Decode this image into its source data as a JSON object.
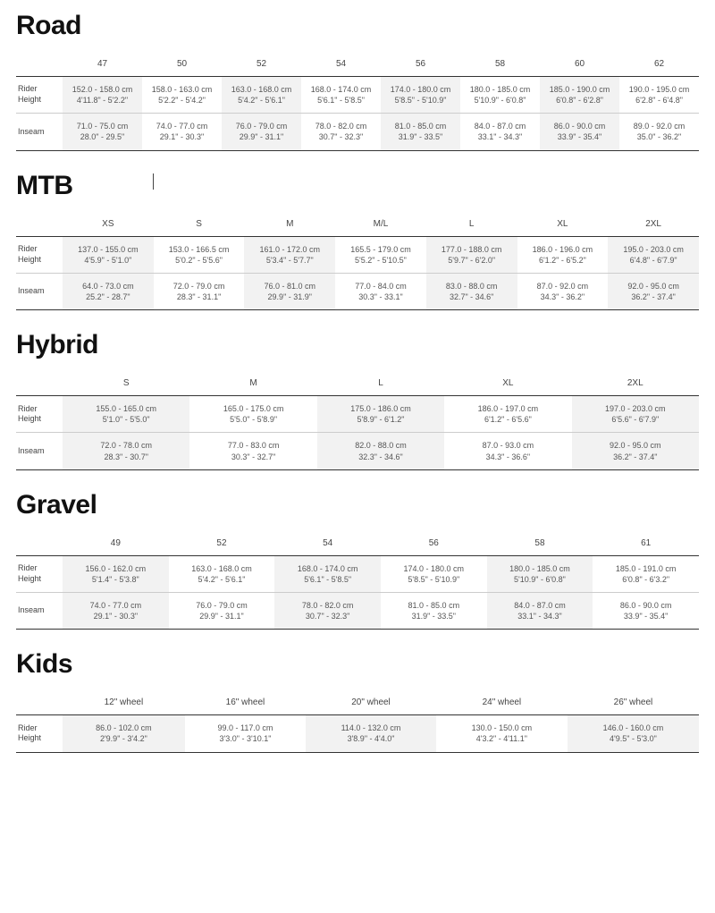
{
  "sections": [
    {
      "title": "Road",
      "cursor": false,
      "sizes": [
        "47",
        "50",
        "52",
        "54",
        "56",
        "58",
        "60",
        "62"
      ],
      "rows": [
        {
          "label": "Rider\nHeight",
          "cells": [
            [
              "152.0 - 158.0 cm",
              "4'11.8\" - 5'2.2\""
            ],
            [
              "158.0 - 163.0 cm",
              "5'2.2\" - 5'4.2\""
            ],
            [
              "163.0 - 168.0 cm",
              "5'4.2\" - 5'6.1\""
            ],
            [
              "168.0 - 174.0 cm",
              "5'6.1\" - 5'8.5\""
            ],
            [
              "174.0 - 180.0 cm",
              "5'8.5\" - 5'10.9\""
            ],
            [
              "180.0 - 185.0 cm",
              "5'10.9\" - 6'0.8\""
            ],
            [
              "185.0 - 190.0 cm",
              "6'0.8\" - 6'2.8\""
            ],
            [
              "190.0 - 195.0 cm",
              "6'2.8\" - 6'4.8\""
            ]
          ]
        },
        {
          "label": "Inseam",
          "cells": [
            [
              "71.0 - 75.0 cm",
              "28.0\" - 29.5\""
            ],
            [
              "74.0 - 77.0 cm",
              "29.1\" - 30.3\""
            ],
            [
              "76.0 - 79.0 cm",
              "29.9\" - 31.1\""
            ],
            [
              "78.0 - 82.0 cm",
              "30.7\" - 32.3\""
            ],
            [
              "81.0 - 85.0 cm",
              "31.9\" - 33.5\""
            ],
            [
              "84.0 - 87.0 cm",
              "33.1\" - 34.3\""
            ],
            [
              "86.0 - 90.0 cm",
              "33.9\" - 35.4\""
            ],
            [
              "89.0 - 92.0 cm",
              "35.0\" - 36.2\""
            ]
          ]
        }
      ]
    },
    {
      "title": "MTB",
      "cursor": true,
      "sizes": [
        "XS",
        "S",
        "M",
        "M/L",
        "L",
        "XL",
        "2XL"
      ],
      "rows": [
        {
          "label": "Rider\nHeight",
          "cells": [
            [
              "137.0 - 155.0 cm",
              "4'5.9\" - 5'1.0\""
            ],
            [
              "153.0 - 166.5 cm",
              "5'0.2\" - 5'5.6\""
            ],
            [
              "161.0 - 172.0 cm",
              "5'3.4\" - 5'7.7\""
            ],
            [
              "165.5 - 179.0 cm",
              "5'5.2\" - 5'10.5\""
            ],
            [
              "177.0 - 188.0 cm",
              "5'9.7\" - 6'2.0\""
            ],
            [
              "186.0 - 196.0 cm",
              "6'1.2\" - 6'5.2\""
            ],
            [
              "195.0 - 203.0 cm",
              "6'4.8\" - 6'7.9\""
            ]
          ]
        },
        {
          "label": "Inseam",
          "cells": [
            [
              "64.0 - 73.0 cm",
              "25.2\" - 28.7\""
            ],
            [
              "72.0 - 79.0 cm",
              "28.3\" - 31.1\""
            ],
            [
              "76.0 - 81.0 cm",
              "29.9\" - 31.9\""
            ],
            [
              "77.0 - 84.0 cm",
              "30.3\" - 33.1\""
            ],
            [
              "83.0 - 88.0 cm",
              "32.7\" - 34.6\""
            ],
            [
              "87.0 - 92.0 cm",
              "34.3\" - 36.2\""
            ],
            [
              "92.0 - 95.0 cm",
              "36.2\" - 37.4\""
            ]
          ]
        }
      ]
    },
    {
      "title": "Hybrid",
      "cursor": false,
      "sizes": [
        "S",
        "M",
        "L",
        "XL",
        "2XL"
      ],
      "rows": [
        {
          "label": "Rider\nHeight",
          "cells": [
            [
              "155.0 - 165.0 cm",
              "5'1.0\" - 5'5.0\""
            ],
            [
              "165.0 - 175.0 cm",
              "5'5.0\" - 5'8.9\""
            ],
            [
              "175.0 - 186.0 cm",
              "5'8.9\" - 6'1.2\""
            ],
            [
              "186.0 - 197.0 cm",
              "6'1.2\" - 6'5.6\""
            ],
            [
              "197.0 - 203.0 cm",
              "6'5.6\" - 6'7.9\""
            ]
          ]
        },
        {
          "label": "Inseam",
          "cells": [
            [
              "72.0 - 78.0 cm",
              "28.3\" - 30.7\""
            ],
            [
              "77.0 - 83.0 cm",
              "30.3\" - 32.7\""
            ],
            [
              "82.0 - 88.0 cm",
              "32.3\" - 34.6\""
            ],
            [
              "87.0 - 93.0 cm",
              "34.3\" - 36.6\""
            ],
            [
              "92.0 - 95.0 cm",
              "36.2\" - 37.4\""
            ]
          ]
        }
      ]
    },
    {
      "title": "Gravel",
      "cursor": false,
      "sizes": [
        "49",
        "52",
        "54",
        "56",
        "58",
        "61"
      ],
      "rows": [
        {
          "label": "Rider\nHeight",
          "cells": [
            [
              "156.0 - 162.0 cm",
              "5'1.4\" - 5'3.8\""
            ],
            [
              "163.0 - 168.0 cm",
              "5'4.2\" - 5'6.1\""
            ],
            [
              "168.0 - 174.0 cm",
              "5'6.1\" - 5'8.5\""
            ],
            [
              "174.0 - 180.0 cm",
              "5'8.5\" - 5'10.9\""
            ],
            [
              "180.0 - 185.0 cm",
              "5'10.9\" - 6'0.8\""
            ],
            [
              "185.0 - 191.0 cm",
              "6'0.8\" - 6'3.2\""
            ]
          ]
        },
        {
          "label": "Inseam",
          "cells": [
            [
              "74.0 - 77.0 cm",
              "29.1\" - 30.3\""
            ],
            [
              "76.0 - 79.0 cm",
              "29.9\" - 31.1\""
            ],
            [
              "78.0 - 82.0 cm",
              "30.7\" - 32.3\""
            ],
            [
              "81.0 - 85.0 cm",
              "31.9\" - 33.5\""
            ],
            [
              "84.0 - 87.0 cm",
              "33.1\" - 34.3\""
            ],
            [
              "86.0 - 90.0 cm",
              "33.9\" - 35.4\""
            ]
          ]
        }
      ]
    },
    {
      "title": "Kids",
      "cursor": false,
      "sizes": [
        "12\" wheel",
        "16\" wheel",
        "20\" wheel",
        "24\" wheel",
        "26\" wheel"
      ],
      "rows": [
        {
          "label": "Rider\nHeight",
          "cells": [
            [
              "86.0 - 102.0 cm",
              "2'9.9\" - 3'4.2\""
            ],
            [
              "99.0 - 117.0 cm",
              "3'3.0\" - 3'10.1\""
            ],
            [
              "114.0 - 132.0 cm",
              "3'8.9\" - 4'4.0\""
            ],
            [
              "130.0 - 150.0 cm",
              "4'3.2\" - 4'11.1\""
            ],
            [
              "146.0 - 160.0 cm",
              "4'9.5\" - 5'3.0\""
            ]
          ]
        }
      ]
    }
  ],
  "style": {
    "background_color": "#ffffff",
    "text_color": "#555555",
    "heading_color": "#111111",
    "border_strong": "#333333",
    "border_light": "#cccccc",
    "stripe_color": "#f2f2f2",
    "title_fontsize": 30,
    "cell_fontsize": 9,
    "header_fontsize": 10
  }
}
